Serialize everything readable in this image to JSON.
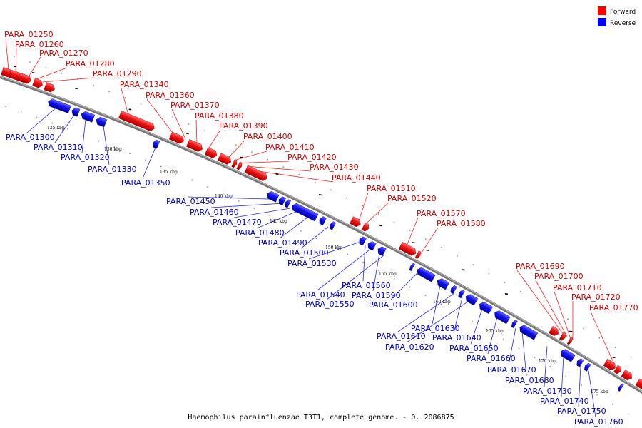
{
  "title": "Haemophilus parainfluenzae T3T1, complete genome. - 0..2086875",
  "legend": [
    {
      "label": "Forward",
      "color": "#ff0000"
    },
    {
      "label": "Reverse",
      "color": "#0000ff"
    }
  ],
  "colors": {
    "forward": "#ee1111",
    "reverse": "#1111ee",
    "forward_label": "#cc0000",
    "reverse_label": "#0000cc",
    "backbone": "#555555"
  },
  "ticks": [
    "125 kbp",
    "130 kbp",
    "135 kbp",
    "140 kbp",
    "145 kbp",
    "150 kbp",
    "155 kbp",
    "160 kbp",
    "165 kbp",
    "170 kbp",
    "175 kbp"
  ],
  "forward_genes": [
    "PARA_01250",
    "PARA_01260",
    "PARA_01270",
    "PARA_01280",
    "PARA_01290",
    "PARA_01340",
    "PARA_01360",
    "PARA_01370",
    "PARA_01380",
    "PARA_01390",
    "PARA_01400",
    "PARA_01410",
    "PARA_01420",
    "PARA_01430",
    "PARA_01440",
    "PARA_01510",
    "PARA_01520",
    "PARA_01570",
    "PARA_01580",
    "PARA_01690",
    "PARA_01700",
    "PARA_01710",
    "PARA_01720",
    "PARA_01770"
  ],
  "reverse_genes": [
    "PARA_01300",
    "PARA_01310",
    "PARA_01320",
    "PARA_01330",
    "PARA_01350",
    "PARA_01450",
    "PARA_01460",
    "PARA_01470",
    "PARA_01480",
    "PARA_01490",
    "PARA_01500",
    "PARA_01530",
    "PARA_01560",
    "PARA_01540",
    "PARA_01590",
    "PARA_01550",
    "PARA_01600",
    "PARA_01630",
    "PARA_01610",
    "PARA_01640",
    "PARA_01620",
    "PARA_01650",
    "PARA_01660",
    "PARA_01670",
    "PARA_01680",
    "PARA_01730",
    "PARA_01740",
    "PARA_01750",
    "PARA_01760"
  ]
}
